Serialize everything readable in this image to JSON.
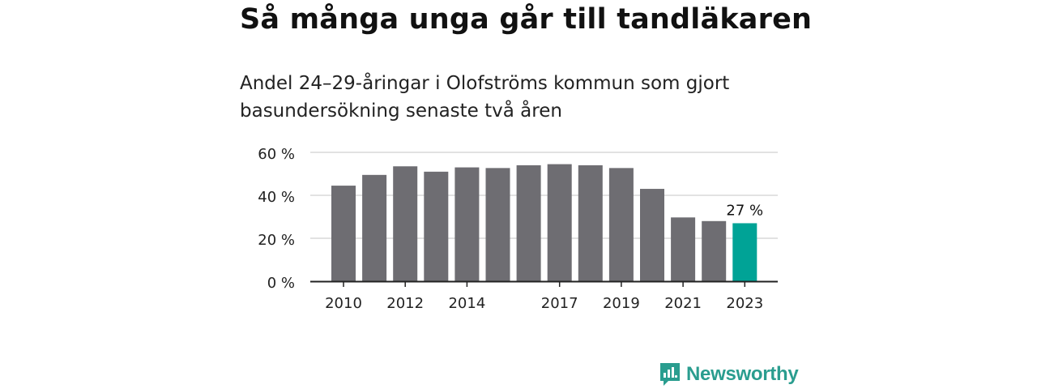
{
  "chart_data": {
    "type": "bar",
    "title": "Så många unga går till tandläkaren",
    "subtitle": "Andel 24–29-åringar i Olofströms kommun som gjort basundersökning senaste två åren",
    "categories": [
      "2010",
      "2011",
      "2012",
      "2013",
      "2014",
      "2015",
      "2016",
      "2017",
      "2018",
      "2019",
      "2020",
      "2021",
      "2022",
      "2023"
    ],
    "x_tick_labels": [
      "2010",
      "",
      "2012",
      "",
      "2014",
      "",
      "",
      "2017",
      "",
      "2019",
      "",
      "2021",
      "",
      "2023"
    ],
    "values": [
      44.5,
      49.5,
      53.5,
      51,
      53,
      52.7,
      54,
      54.5,
      54,
      52.7,
      43,
      29.7,
      28,
      27
    ],
    "value_unit": "%",
    "ylim": [
      0,
      60
    ],
    "y_ticks": [
      0,
      20,
      40,
      60
    ],
    "y_tick_labels": [
      "0 %",
      "20 %",
      "40 %",
      "60 %"
    ],
    "grid": true,
    "colors": {
      "bar": "#6e6d72",
      "highlight": "#00a396",
      "grid": "#d9d9d9",
      "axis": "#222222"
    },
    "highlight_index": 13,
    "highlight_label": "27 %"
  },
  "brand": {
    "name": "Newsworthy",
    "color": "#2a9d8f",
    "icon": "newsworthy-logo-icon"
  }
}
